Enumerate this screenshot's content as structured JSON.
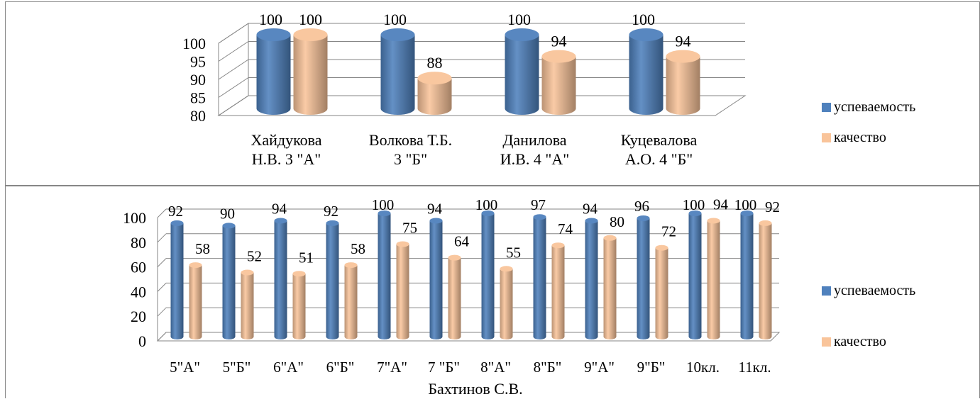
{
  "chart_data": [
    {
      "type": "bar",
      "title": "",
      "xlabel": "",
      "ylabel": "",
      "ylim": [
        80,
        100
      ],
      "ytick_labels": [
        "80",
        "85",
        "90",
        "95",
        "100"
      ],
      "categories": [
        [
          "Хайдукова",
          "Н.В. 3 \"А\""
        ],
        [
          "Волкова Т.Б.",
          "3 \"Б\""
        ],
        [
          "Данилова",
          "И.В. 4 \"А\""
        ],
        [
          "Куцевалова",
          "А.О. 4 \"Б\""
        ]
      ],
      "series": [
        {
          "name": "успеваемость",
          "color": "#4F81BD",
          "values": [
            100,
            100,
            100,
            100
          ]
        },
        {
          "name": "качество",
          "color": "#F9C49A",
          "values": [
            100,
            88,
            94,
            94
          ]
        }
      ],
      "legend": "right",
      "grid": true
    },
    {
      "type": "bar",
      "title": "",
      "xlabel": "Бахтинов С.В.",
      "ylabel": "",
      "ylim": [
        0,
        100
      ],
      "ytick_labels": [
        "0",
        "20",
        "40",
        "60",
        "80",
        "100"
      ],
      "categories": [
        "5\"А\"",
        "5\"Б\"",
        "6\"А\"",
        "6\"Б\"",
        "7\"А\"",
        "7 \"Б\"",
        "8\"А\"",
        "8\"Б\"",
        "9\"А\"",
        "9\"Б\"",
        "10кл.",
        "11кл."
      ],
      "series": [
        {
          "name": "успеваемость",
          "color": "#4F81BD",
          "values": [
            92,
            90,
            94,
            92,
            100,
            94,
            100,
            97,
            94,
            96,
            100,
            100
          ]
        },
        {
          "name": "качество",
          "color": "#F9C49A",
          "values": [
            58,
            52,
            51,
            58,
            75,
            64,
            55,
            74,
            80,
            72,
            94,
            92
          ]
        }
      ],
      "legend": "right",
      "grid": true
    }
  ]
}
